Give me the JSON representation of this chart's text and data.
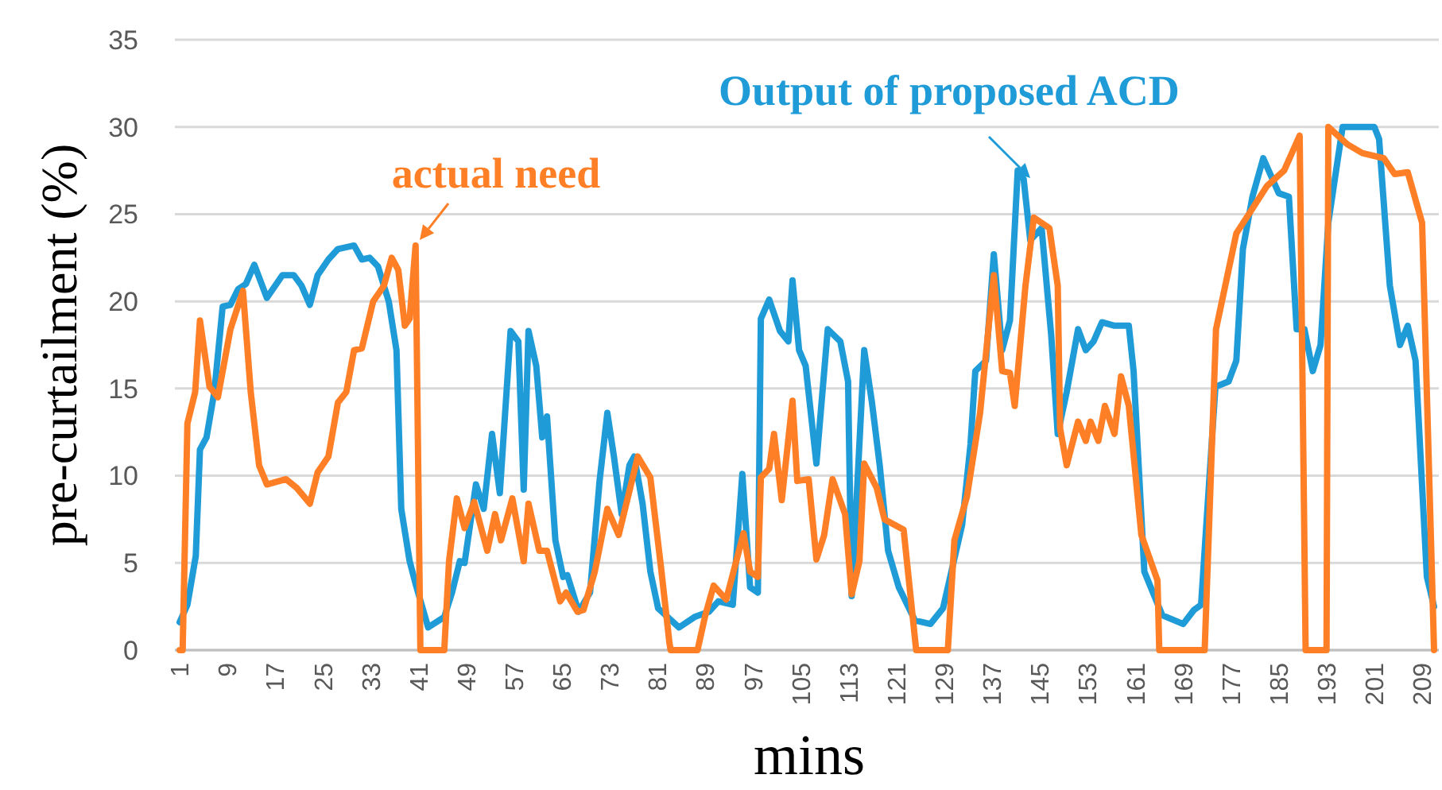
{
  "chart_data": {
    "type": "line",
    "xlabel": "mins",
    "ylabel": "pre-curtailment (%)",
    "xlim": [
      1,
      211
    ],
    "xticks": [
      1,
      9,
      17,
      25,
      33,
      41,
      49,
      57,
      65,
      73,
      81,
      89,
      97,
      105,
      113,
      121,
      129,
      137,
      145,
      153,
      161,
      169,
      177,
      185,
      193,
      201,
      209
    ],
    "ylim": [
      0,
      35
    ],
    "yticks": [
      0,
      5,
      10,
      15,
      20,
      25,
      30,
      35
    ],
    "grid": "y",
    "legend": false,
    "series": [
      {
        "name": "Output of proposed ACD",
        "color": "#1f9bd7",
        "x": [
          1,
          2.3,
          3.7,
          4.4,
          5.5,
          6.8,
          8.2,
          9.5,
          10.8,
          12.1,
          13.5,
          15.6,
          18.2,
          20.1,
          21.4,
          22.8,
          24.1,
          25.9,
          27.5,
          30.2,
          31.5,
          32.8,
          34.2,
          36,
          37.3,
          38.1,
          39.5,
          40.5,
          42.6,
          45.3,
          46.6,
          47.9,
          48.7,
          50.6,
          51.9,
          53.3,
          54.6,
          56.4,
          57.7,
          58.6,
          59.4,
          60.7,
          61.7,
          62.5,
          63.9,
          65.2,
          65.9,
          67.8,
          69.7,
          71.3,
          72.6,
          73.7,
          75,
          76.3,
          77.1,
          78.5,
          79.8,
          81.1,
          84.6,
          87.2,
          89.6,
          91.2,
          93.6,
          95.2,
          96.5,
          97.8,
          98.3,
          99.7,
          101.5,
          102.9,
          103.6,
          104.7,
          105.8,
          107.6,
          109.5,
          111.6,
          112.9,
          113.5,
          115.6,
          116.9,
          118.2,
          119.6,
          121.4,
          124.1,
          126.7,
          128.8,
          130.2,
          132,
          133.4,
          134.2,
          136,
          137.3,
          138.7,
          140,
          141.3,
          142.3,
          143.4,
          145.3,
          146.9,
          148,
          149.5,
          151.4,
          152.7,
          154,
          155.4,
          157.5,
          159.9,
          160.7,
          162.5,
          165.5,
          169,
          170.8,
          172,
          174.4,
          176.6,
          177.9,
          179,
          180.6,
          182.4,
          185,
          186.7,
          188,
          189.3,
          190.7,
          192,
          193.3,
          194.6,
          195.7,
          201,
          201.8,
          203.6,
          205.3,
          206.6,
          207.9,
          209.8,
          211
        ],
        "values": [
          1.6,
          2.6,
          5.4,
          11.5,
          12.2,
          14.8,
          19.7,
          19.8,
          20.7,
          21,
          22.1,
          20.2,
          21.5,
          21.5,
          20.9,
          19.8,
          21.5,
          22.4,
          23,
          23.2,
          22.4,
          22.5,
          22,
          20,
          17.2,
          8.1,
          5.1,
          3.8,
          1.3,
          1.9,
          3.3,
          5.1,
          5,
          9.5,
          8.1,
          12.4,
          9,
          18.3,
          17.7,
          9.2,
          18.3,
          16.3,
          12.2,
          13.4,
          6.3,
          4.2,
          4.3,
          2.2,
          3.3,
          9.7,
          13.6,
          11.1,
          7.8,
          10.6,
          11.1,
          8.4,
          4.5,
          2.4,
          1.3,
          1.9,
          2.2,
          2.8,
          2.6,
          10.1,
          3.6,
          3.3,
          19,
          20.1,
          18.3,
          17.7,
          21.2,
          17.2,
          16.3,
          10.7,
          18.4,
          17.7,
          15.4,
          3.1,
          17.2,
          14.2,
          10.6,
          5.7,
          3.6,
          1.7,
          1.5,
          2.4,
          4.5,
          7.2,
          11.8,
          16,
          16.6,
          22.7,
          17.2,
          18.9,
          27.5,
          27,
          23.5,
          24.2,
          18.1,
          12.4,
          14.8,
          18.4,
          17.2,
          17.7,
          18.8,
          18.6,
          18.6,
          16,
          4.5,
          2,
          1.5,
          2.3,
          2.6,
          15.1,
          15.4,
          16.6,
          23,
          26,
          28.2,
          26.2,
          26,
          18.4,
          18.4,
          16,
          17.5,
          24.5,
          27.5,
          30,
          30,
          29.3,
          20.9,
          17.5,
          18.6,
          16.6,
          4.2,
          2.5
        ]
      },
      {
        "name": "actual need",
        "color": "#ff7f27",
        "x": [
          1,
          1.5,
          2.3,
          3.6,
          4.4,
          6,
          7.4,
          9.5,
          11.6,
          12.9,
          14.3,
          15.6,
          18.8,
          20.6,
          22.8,
          24.1,
          25.9,
          27.5,
          28.9,
          30.2,
          31.5,
          33.4,
          35.2,
          36.5,
          37.6,
          38.7,
          39.5,
          40.5,
          41.3,
          45.3,
          46.1,
          47.4,
          48.7,
          50.3,
          52.5,
          53.8,
          54.8,
          56.7,
          58.6,
          59.4,
          61.2,
          62.5,
          64.7,
          65.7,
          67.6,
          68.6,
          70.5,
          72.6,
          74.5,
          77.7,
          79.8,
          81.6,
          83,
          83.2,
          87.7,
          89,
          90.4,
          92.5,
          95.4,
          96.5,
          97.8,
          98.3,
          99.7,
          100.5,
          101.8,
          103.6,
          104.4,
          106.3,
          107.6,
          108.9,
          110.3,
          112.4,
          113.5,
          114.8,
          115.6,
          117.7,
          119,
          122.2,
          124.3,
          129.6,
          130.7,
          132.8,
          135,
          137.3,
          138.7,
          140,
          140.8,
          142.6,
          144,
          146.6,
          148,
          148.4,
          149.5,
          151.4,
          152.7,
          153.5,
          154.8,
          155.9,
          157.5,
          158.6,
          159.9,
          162,
          164.7,
          165,
          172.6,
          174.5,
          175.8,
          177.9,
          180,
          183,
          185.9,
          188.5,
          189.5,
          193,
          193.3,
          196.5,
          199,
          202.6,
          204.4,
          206.6,
          209,
          211
        ],
        "values": [
          0,
          0,
          13,
          14.8,
          18.9,
          15.1,
          14.5,
          18.4,
          20.6,
          14.8,
          10.6,
          9.5,
          9.8,
          9.3,
          8.4,
          10.2,
          11.1,
          14.2,
          14.8,
          17.2,
          17.3,
          20,
          20.9,
          22.5,
          21.8,
          18.6,
          19,
          23.2,
          0,
          0,
          5.1,
          8.7,
          7,
          8.5,
          5.7,
          7.8,
          6.3,
          8.7,
          5.1,
          8.4,
          5.7,
          5.7,
          2.8,
          3.3,
          2.2,
          2.3,
          4.5,
          8.1,
          6.6,
          11.1,
          9.9,
          4.7,
          0.4,
          0,
          0,
          2,
          3.7,
          2.9,
          6.7,
          4.5,
          4.2,
          9.9,
          10.4,
          12.4,
          8.6,
          14.3,
          9.7,
          9.8,
          5.2,
          6.6,
          9.8,
          7.8,
          3.2,
          5.1,
          10.7,
          9.3,
          7.5,
          6.9,
          0,
          0,
          6.3,
          8.8,
          13.6,
          21.5,
          16,
          15.9,
          14,
          20.9,
          24.8,
          24.2,
          20.9,
          12.7,
          10.6,
          13.1,
          12,
          13.1,
          12,
          14,
          12.4,
          15.7,
          14,
          6.6,
          4,
          0,
          0,
          18.4,
          20.5,
          23.9,
          25,
          26.6,
          27.5,
          29.5,
          0,
          0,
          30,
          29,
          28.5,
          28.2,
          27.3,
          27.4,
          24.5,
          0
        ]
      }
    ]
  }
}
